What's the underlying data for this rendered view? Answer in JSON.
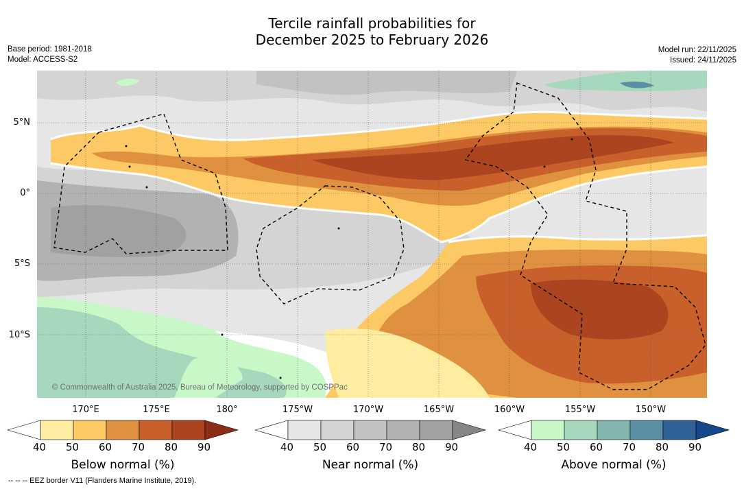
{
  "title_line1": "Tercile rainfall probabilities for",
  "title_line2": "December 2025 to February 2026",
  "meta": {
    "base_period": "Base period: 1981-2018",
    "model": "Model: ACCESS-S2",
    "model_run": "Model run: 22/11/2025",
    "issued": "Issued: 24/11/2025"
  },
  "lat_labels": [
    "5°N",
    "0°",
    "5°S",
    "10°S"
  ],
  "lon_labels": [
    "170°E",
    "175°E",
    "180°",
    "175°W",
    "170°W",
    "165°W",
    "160°W",
    "155°W",
    "150°W"
  ],
  "copyright": "© Commonwealth of Australia 2025, Bureau of Meteorology, supported by COSPPac",
  "footnote": "--  --  -- EEZ border V11 (Flanders Marine Institute, 2019).",
  "colorbars": [
    {
      "title": "Below normal (%)",
      "ticks": [
        "40",
        "50",
        "60",
        "70",
        "80",
        "90"
      ],
      "colors": [
        "#ffffff",
        "#feeda0",
        "#fdc965",
        "#e0913f",
        "#c95f2b",
        "#ad4420",
        "#8c2d18"
      ]
    },
    {
      "title": "Near normal (%)",
      "ticks": [
        "40",
        "50",
        "60",
        "70",
        "80",
        "90"
      ],
      "colors": [
        "#ffffff",
        "#e6e6e6",
        "#d4d4d4",
        "#c2c2c2",
        "#b2b2b2",
        "#a1a1a1",
        "#858585"
      ]
    },
    {
      "title": "Above normal (%)",
      "ticks": [
        "40",
        "50",
        "60",
        "70",
        "80",
        "90"
      ],
      "colors": [
        "#ffffff",
        "#c8f8c8",
        "#a5d8bc",
        "#82b5ae",
        "#5b8fa3",
        "#2f6298",
        "#14488a"
      ]
    }
  ]
}
